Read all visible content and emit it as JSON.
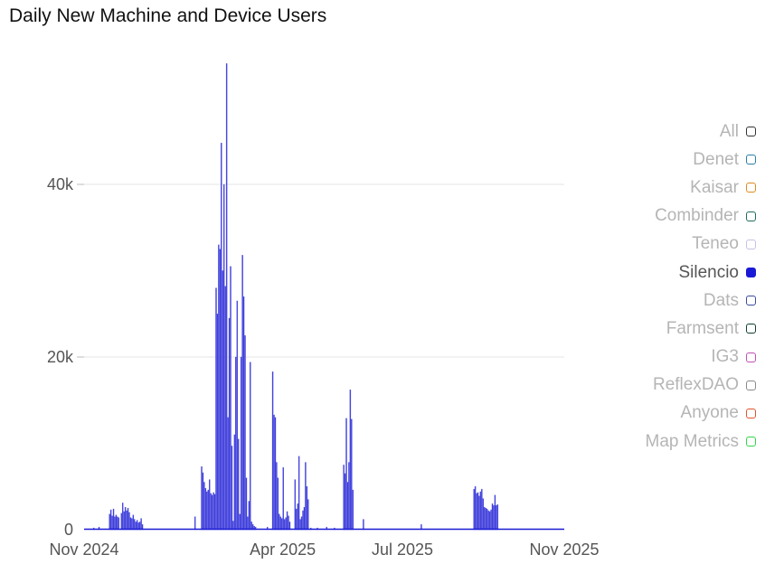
{
  "page": {
    "title": "Daily New Machine and Device Users"
  },
  "chart_data": {
    "type": "bar",
    "title": "Daily New Machine and Device Users",
    "xlabel": "",
    "ylabel": "",
    "x_start": "2024-11-01",
    "x_end": "2025-11-01",
    "x_ticks": [
      {
        "date": "2024-11-01",
        "label": "Nov 2024"
      },
      {
        "date": "2025-04-01",
        "label": "Apr 2025"
      },
      {
        "date": "2025-07-01",
        "label": "Jul 2025"
      },
      {
        "date": "2025-11-01",
        "label": "Nov 2025"
      }
    ],
    "y_ticks": [
      {
        "value": 0,
        "label": "0"
      },
      {
        "value": 20000,
        "label": "20k"
      },
      {
        "value": 40000,
        "label": "40k"
      }
    ],
    "ylim": [
      0,
      55000
    ],
    "grid": true,
    "legend_position": "right",
    "active_series": "Silencio",
    "series": [
      {
        "name": "Silencio",
        "color": "#1a1ad6",
        "points": [
          [
            "2024-11-08",
            200
          ],
          [
            "2024-11-12",
            300
          ],
          [
            "2024-11-20",
            1800
          ],
          [
            "2024-11-21",
            2300
          ],
          [
            "2024-11-22",
            1600
          ],
          [
            "2024-11-23",
            2400
          ],
          [
            "2024-11-24",
            1500
          ],
          [
            "2024-11-25",
            1700
          ],
          [
            "2024-11-26",
            1500
          ],
          [
            "2024-11-27",
            1400
          ],
          [
            "2024-11-29",
            1900
          ],
          [
            "2024-11-30",
            3100
          ],
          [
            "2024-12-01",
            2100
          ],
          [
            "2024-12-02",
            2600
          ],
          [
            "2024-12-03",
            2200
          ],
          [
            "2024-12-04",
            2500
          ],
          [
            "2024-12-05",
            2000
          ],
          [
            "2024-12-06",
            1400
          ],
          [
            "2024-12-07",
            1300
          ],
          [
            "2024-12-08",
            1700
          ],
          [
            "2024-12-09",
            1200
          ],
          [
            "2024-12-10",
            900
          ],
          [
            "2024-12-11",
            1100
          ],
          [
            "2024-12-12",
            800
          ],
          [
            "2024-12-13",
            900
          ],
          [
            "2024-12-14",
            1300
          ],
          [
            "2024-12-15",
            600
          ],
          [
            "2025-01-24",
            1500
          ],
          [
            "2025-01-29",
            7300
          ],
          [
            "2025-01-30",
            6600
          ],
          [
            "2025-01-31",
            5500
          ],
          [
            "2025-02-01",
            4800
          ],
          [
            "2025-02-02",
            4400
          ],
          [
            "2025-02-03",
            4600
          ],
          [
            "2025-02-04",
            5800
          ],
          [
            "2025-02-05",
            4200
          ],
          [
            "2025-02-06",
            4000
          ],
          [
            "2025-02-07",
            4300
          ],
          [
            "2025-02-08",
            4100
          ],
          [
            "2025-02-09",
            28000
          ],
          [
            "2025-02-10",
            25000
          ],
          [
            "2025-02-11",
            33000
          ],
          [
            "2025-02-12",
            32500
          ],
          [
            "2025-02-13",
            44800
          ],
          [
            "2025-02-14",
            30000
          ],
          [
            "2025-02-15",
            40000
          ],
          [
            "2025-02-16",
            28200
          ],
          [
            "2025-02-17",
            54000
          ],
          [
            "2025-02-18",
            13000
          ],
          [
            "2025-02-19",
            24500
          ],
          [
            "2025-02-20",
            30500
          ],
          [
            "2025-02-21",
            9700
          ],
          [
            "2025-02-22",
            1000
          ],
          [
            "2025-02-23",
            11000
          ],
          [
            "2025-02-24",
            20000
          ],
          [
            "2025-02-25",
            26500
          ],
          [
            "2025-02-26",
            10500
          ],
          [
            "2025-02-27",
            1800
          ],
          [
            "2025-02-28",
            20000
          ],
          [
            "2025-03-01",
            31800
          ],
          [
            "2025-03-02",
            27000
          ],
          [
            "2025-03-03",
            22500
          ],
          [
            "2025-03-04",
            6000
          ],
          [
            "2025-03-05",
            1500
          ],
          [
            "2025-03-06",
            3300
          ],
          [
            "2025-03-07",
            19400
          ],
          [
            "2025-03-08",
            900
          ],
          [
            "2025-03-09",
            600
          ],
          [
            "2025-03-10",
            400
          ],
          [
            "2025-03-11",
            300
          ],
          [
            "2025-03-20",
            300
          ],
          [
            "2025-03-24",
            18300
          ],
          [
            "2025-03-25",
            13300
          ],
          [
            "2025-03-26",
            13000
          ],
          [
            "2025-03-27",
            7800
          ],
          [
            "2025-03-28",
            6000
          ],
          [
            "2025-03-29",
            1800
          ],
          [
            "2025-03-30",
            1500
          ],
          [
            "2025-03-31",
            1300
          ],
          [
            "2025-04-01",
            7200
          ],
          [
            "2025-04-02",
            1200
          ],
          [
            "2025-04-03",
            1400
          ],
          [
            "2025-04-04",
            2100
          ],
          [
            "2025-04-05",
            1600
          ],
          [
            "2025-04-06",
            900
          ],
          [
            "2025-04-10",
            5800
          ],
          [
            "2025-04-11",
            2400
          ],
          [
            "2025-04-12",
            3000
          ],
          [
            "2025-04-13",
            8500
          ],
          [
            "2025-04-14",
            1200
          ],
          [
            "2025-04-15",
            1500
          ],
          [
            "2025-04-16",
            2200
          ],
          [
            "2025-04-17",
            2600
          ],
          [
            "2025-04-18",
            7800
          ],
          [
            "2025-04-19",
            5000
          ],
          [
            "2025-04-20",
            3500
          ],
          [
            "2025-04-22",
            200
          ],
          [
            "2025-04-27",
            200
          ],
          [
            "2025-05-04",
            300
          ],
          [
            "2025-05-10",
            200
          ],
          [
            "2025-05-17",
            7500
          ],
          [
            "2025-05-18",
            6500
          ],
          [
            "2025-05-19",
            12900
          ],
          [
            "2025-05-20",
            5500
          ],
          [
            "2025-05-21",
            7800
          ],
          [
            "2025-05-22",
            16200
          ],
          [
            "2025-05-23",
            12800
          ],
          [
            "2025-05-24",
            4600
          ],
          [
            "2025-06-01",
            1200
          ],
          [
            "2025-07-15",
            600
          ],
          [
            "2025-08-24",
            4700
          ],
          [
            "2025-08-25",
            5000
          ],
          [
            "2025-08-26",
            4200
          ],
          [
            "2025-08-27",
            4300
          ],
          [
            "2025-08-28",
            3900
          ],
          [
            "2025-08-29",
            4400
          ],
          [
            "2025-08-30",
            4700
          ],
          [
            "2025-08-31",
            3600
          ],
          [
            "2025-09-01",
            2600
          ],
          [
            "2025-09-02",
            2500
          ],
          [
            "2025-09-03",
            2400
          ],
          [
            "2025-09-04",
            2200
          ],
          [
            "2025-09-05",
            2100
          ],
          [
            "2025-09-06",
            2300
          ],
          [
            "2025-09-07",
            3000
          ],
          [
            "2025-09-08",
            2800
          ],
          [
            "2025-09-09",
            4000
          ],
          [
            "2025-09-10",
            2800
          ],
          [
            "2025-09-11",
            2900
          ]
        ]
      }
    ]
  },
  "legend": {
    "items": [
      {
        "label": "All",
        "color": "#333333",
        "active": false
      },
      {
        "label": "Denet",
        "color": "#2a7fa8",
        "active": false
      },
      {
        "label": "Kaisar",
        "color": "#e08a1e",
        "active": false
      },
      {
        "label": "Combinder",
        "color": "#1f6b5a",
        "active": false
      },
      {
        "label": "Teneo",
        "color": "#c8c0e4",
        "active": false
      },
      {
        "label": "Silencio",
        "color": "#1a1ad6",
        "active": true
      },
      {
        "label": "Dats",
        "color": "#3a4aa0",
        "active": false
      },
      {
        "label": "Farmsent",
        "color": "#10402e",
        "active": false
      },
      {
        "label": "IG3",
        "color": "#c24fb8",
        "active": false
      },
      {
        "label": "ReflexDAO",
        "color": "#8a8a8a",
        "active": false
      },
      {
        "label": "Anyone",
        "color": "#e0552a",
        "active": false
      },
      {
        "label": "Map Metrics",
        "color": "#33d64a",
        "active": false
      }
    ]
  }
}
